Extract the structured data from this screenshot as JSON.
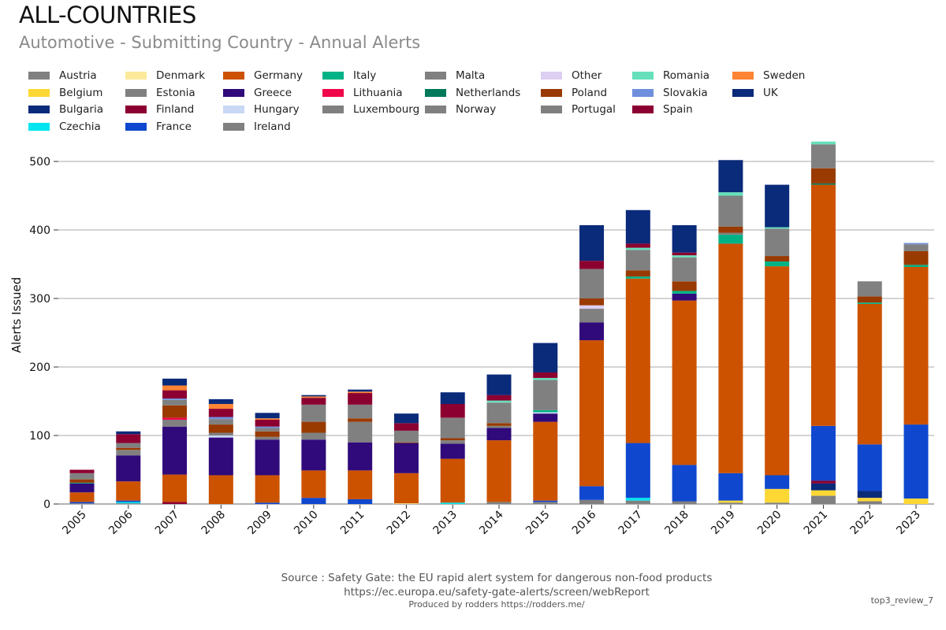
{
  "header": {
    "title": "ALL-COUNTRIES",
    "subtitle": "Automotive - Submitting Country - Annual Alerts"
  },
  "footer": {
    "source": "Source : Safety Gate: the EU rapid alert system for dangerous non-food products",
    "url": "https://ec.europa.eu/safety-gate-alerts/screen/webReport",
    "produced_by": "Produced by rodders https://rodders.me/",
    "tag": "top3_review_7"
  },
  "chart_data": {
    "type": "bar",
    "stacked": true,
    "title": "Automotive - Submitting Country - Annual Alerts",
    "xlabel": "",
    "ylabel": "Alerts Issued",
    "ylim": [
      0,
      525
    ],
    "yticks": [
      0,
      100,
      200,
      300,
      400,
      500
    ],
    "grid": true,
    "legend_position": "top",
    "categories": [
      "2005",
      "2006",
      "2007",
      "2008",
      "2009",
      "2010",
      "2011",
      "2012",
      "2013",
      "2014",
      "2015",
      "2016",
      "2017",
      "2018",
      "2019",
      "2020",
      "2021",
      "2022",
      "2023"
    ],
    "series": [
      {
        "name": "Austria",
        "color": "#808080",
        "values": [
          1,
          1,
          0,
          0,
          0,
          0,
          0,
          0,
          0,
          3,
          3,
          6,
          5,
          4,
          2,
          2,
          12,
          4,
          0
        ]
      },
      {
        "name": "Belgium",
        "color": "#fdd835",
        "values": [
          0,
          0,
          0,
          0,
          0,
          0,
          0,
          0,
          0,
          0,
          0,
          0,
          0,
          0,
          3,
          20,
          8,
          5,
          8
        ]
      },
      {
        "name": "Bulgaria",
        "color": "#0a2a7a",
        "values": [
          0,
          0,
          0,
          0,
          0,
          0,
          0,
          0,
          0,
          0,
          0,
          0,
          0,
          0,
          0,
          0,
          10,
          10,
          0
        ]
      },
      {
        "name": "Czechia",
        "color": "#00e5f0",
        "values": [
          0,
          2,
          0,
          0,
          0,
          0,
          0,
          0,
          2,
          0,
          0,
          0,
          4,
          0,
          0,
          0,
          0,
          0,
          0
        ]
      },
      {
        "name": "Denmark",
        "color": "#fde99a",
        "values": [
          0,
          0,
          0,
          0,
          0,
          0,
          0,
          1,
          0,
          0,
          0,
          0,
          0,
          0,
          0,
          0,
          0,
          0,
          0
        ]
      },
      {
        "name": "Estonia",
        "color": "#808080",
        "values": [
          0,
          0,
          0,
          0,
          0,
          0,
          0,
          0,
          0,
          0,
          0,
          0,
          0,
          0,
          0,
          0,
          0,
          0,
          0
        ]
      },
      {
        "name": "Finland",
        "color": "#8b0030",
        "values": [
          0,
          0,
          3,
          0,
          0,
          0,
          0,
          0,
          0,
          0,
          0,
          0,
          0,
          0,
          0,
          0,
          4,
          0,
          0
        ]
      },
      {
        "name": "France",
        "color": "#0f47cf",
        "values": [
          2,
          2,
          0,
          0,
          2,
          9,
          7,
          0,
          0,
          0,
          2,
          20,
          80,
          53,
          40,
          20,
          80,
          68,
          108
        ]
      },
      {
        "name": "Germany",
        "color": "#cc5200",
        "values": [
          14,
          28,
          40,
          42,
          40,
          40,
          42,
          44,
          64,
          90,
          115,
          213,
          240,
          240,
          335,
          305,
          352,
          205,
          230
        ]
      },
      {
        "name": "Greece",
        "color": "#300a7a",
        "values": [
          13,
          38,
          70,
          55,
          52,
          45,
          41,
          44,
          22,
          18,
          12,
          26,
          0,
          10,
          0,
          0,
          0,
          0,
          0
        ]
      },
      {
        "name": "Hungary",
        "color": "#c8d8f5",
        "values": [
          0,
          0,
          0,
          3,
          0,
          0,
          0,
          0,
          0,
          0,
          2,
          0,
          0,
          0,
          0,
          0,
          0,
          0,
          0
        ]
      },
      {
        "name": "Ireland",
        "color": "#808080",
        "values": [
          0,
          8,
          10,
          4,
          4,
          10,
          30,
          0,
          5,
          3,
          0,
          12,
          0,
          0,
          0,
          0,
          0,
          0,
          0
        ]
      },
      {
        "name": "Italy",
        "color": "#00b386",
        "values": [
          1,
          0,
          0,
          0,
          0,
          0,
          0,
          0,
          0,
          0,
          3,
          0,
          3,
          4,
          13,
          7,
          0,
          2,
          3
        ]
      },
      {
        "name": "Lithuania",
        "color": "#f0064a",
        "values": [
          0,
          0,
          3,
          0,
          0,
          0,
          0,
          0,
          0,
          0,
          0,
          0,
          0,
          0,
          0,
          0,
          0,
          0,
          0
        ]
      },
      {
        "name": "Luxembourg",
        "color": "#808080",
        "values": [
          0,
          0,
          0,
          0,
          0,
          0,
          0,
          0,
          0,
          0,
          0,
          0,
          0,
          0,
          3,
          0,
          0,
          0,
          0
        ]
      },
      {
        "name": "Malta",
        "color": "#808080",
        "values": [
          0,
          0,
          0,
          0,
          0,
          0,
          0,
          0,
          0,
          0,
          0,
          0,
          0,
          0,
          0,
          0,
          0,
          0,
          0
        ]
      },
      {
        "name": "Netherlands",
        "color": "#00795b",
        "values": [
          0,
          0,
          0,
          0,
          0,
          0,
          0,
          0,
          0,
          0,
          0,
          0,
          0,
          0,
          0,
          0,
          2,
          0,
          0
        ]
      },
      {
        "name": "Norway",
        "color": "#808080",
        "values": [
          0,
          0,
          0,
          0,
          0,
          0,
          0,
          0,
          0,
          0,
          0,
          8,
          0,
          0,
          0,
          0,
          0,
          0,
          0
        ]
      },
      {
        "name": "Other",
        "color": "#dccff2",
        "values": [
          0,
          0,
          0,
          0,
          0,
          0,
          0,
          0,
          0,
          0,
          0,
          5,
          0,
          0,
          0,
          0,
          0,
          0,
          0
        ]
      },
      {
        "name": "Poland",
        "color": "#993a00",
        "values": [
          5,
          3,
          18,
          12,
          8,
          16,
          5,
          1,
          3,
          4,
          0,
          10,
          9,
          14,
          9,
          8,
          22,
          9,
          20
        ]
      },
      {
        "name": "Portugal",
        "color": "#808080",
        "values": [
          9,
          7,
          8,
          8,
          5,
          25,
          20,
          17,
          30,
          30,
          44,
          43,
          30,
          35,
          45,
          40,
          35,
          22,
          10
        ]
      },
      {
        "name": "Romania",
        "color": "#66e0bb",
        "values": [
          0,
          0,
          0,
          0,
          0,
          0,
          0,
          0,
          0,
          3,
          3,
          0,
          3,
          3,
          5,
          2,
          4,
          0,
          0
        ]
      },
      {
        "name": "Slovakia",
        "color": "#6f8fdc",
        "values": [
          0,
          0,
          2,
          3,
          2,
          0,
          0,
          0,
          0,
          0,
          0,
          0,
          0,
          0,
          0,
          0,
          0,
          0,
          2
        ]
      },
      {
        "name": "Spain",
        "color": "#8b0030",
        "values": [
          5,
          13,
          12,
          12,
          10,
          10,
          17,
          11,
          20,
          8,
          8,
          12,
          6,
          4,
          0,
          0,
          0,
          0,
          0
        ]
      },
      {
        "name": "Sweden",
        "color": "#ff8433",
        "values": [
          0,
          0,
          7,
          7,
          2,
          2,
          2,
          0,
          0,
          0,
          0,
          0,
          0,
          0,
          0,
          0,
          0,
          0,
          0
        ]
      },
      {
        "name": "UK",
        "color": "#0a2a7a",
        "values": [
          0,
          4,
          10,
          7,
          8,
          2,
          3,
          14,
          17,
          30,
          43,
          52,
          49,
          40,
          47,
          62,
          0,
          0,
          0
        ]
      }
    ]
  },
  "legend": [
    {
      "label": "Austria",
      "color": "#808080"
    },
    {
      "label": "Belgium",
      "color": "#fdd835"
    },
    {
      "label": "Bulgaria",
      "color": "#0a2a7a"
    },
    {
      "label": "Czechia",
      "color": "#00e5f0"
    },
    {
      "label": "Denmark",
      "color": "#fde99a"
    },
    {
      "label": "Estonia",
      "color": "#808080"
    },
    {
      "label": "Finland",
      "color": "#8b0030"
    },
    {
      "label": "France",
      "color": "#0f47cf"
    },
    {
      "label": "Germany",
      "color": "#cc5200"
    },
    {
      "label": "Greece",
      "color": "#300a7a"
    },
    {
      "label": "Hungary",
      "color": "#c8d8f5"
    },
    {
      "label": "Ireland",
      "color": "#808080"
    },
    {
      "label": "Italy",
      "color": "#00b386"
    },
    {
      "label": "Lithuania",
      "color": "#f0064a"
    },
    {
      "label": "Luxembourg",
      "color": "#808080"
    },
    {
      "label": "Malta",
      "color": "#808080"
    },
    {
      "label": "Netherlands",
      "color": "#00795b"
    },
    {
      "label": "Norway",
      "color": "#808080"
    },
    {
      "label": "Other",
      "color": "#dccff2"
    },
    {
      "label": "Poland",
      "color": "#993a00"
    },
    {
      "label": "Portugal",
      "color": "#808080"
    },
    {
      "label": "Romania",
      "color": "#66e0bb"
    },
    {
      "label": "Slovakia",
      "color": "#6f8fdc"
    },
    {
      "label": "Spain",
      "color": "#8b0030"
    },
    {
      "label": "Sweden",
      "color": "#ff8433"
    },
    {
      "label": "UK",
      "color": "#0a2a7a"
    }
  ]
}
